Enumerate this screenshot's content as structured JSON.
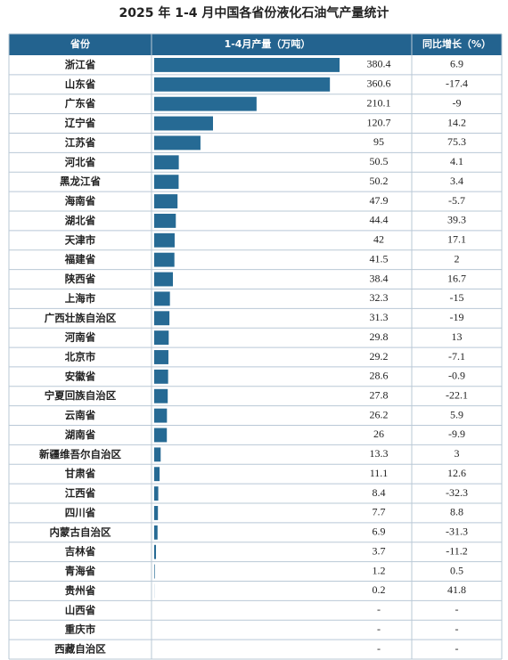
{
  "table": {
    "title": "2025 年 1-4 月中国各省份液化石油气产量统计",
    "columns": [
      "省份",
      "1-4月产量（万吨）",
      "同比增长（%）"
    ],
    "bar_color": "#266a94",
    "rows": [
      [
        "浙江省",
        380.4,
        6.9
      ],
      [
        "山东省",
        360.6,
        -17.4
      ],
      [
        "广东省",
        210.1,
        -9
      ],
      [
        "辽宁省",
        120.7,
        14.2
      ],
      [
        "江苏省",
        95,
        75.3
      ],
      [
        "河北省",
        50.5,
        4.1
      ],
      [
        "黑龙江省",
        50.2,
        3.4
      ],
      [
        "海南省",
        47.9,
        -5.7
      ],
      [
        "湖北省",
        44.4,
        39.3
      ],
      [
        "天津市",
        42,
        17.1
      ],
      [
        "福建省",
        41.5,
        2
      ],
      [
        "陕西省",
        38.4,
        16.7
      ],
      [
        "上海市",
        32.3,
        -15
      ],
      [
        "广西壮族自治区",
        31.3,
        -19
      ],
      [
        "河南省",
        29.8,
        13
      ],
      [
        "北京市",
        29.2,
        -7.1
      ],
      [
        "安徽省",
        28.6,
        -0.9
      ],
      [
        "宁夏回族自治区",
        27.8,
        -22.1
      ],
      [
        "云南省",
        26.2,
        5.9
      ],
      [
        "湖南省",
        26,
        -9.9
      ],
      [
        "新疆维吾尔自治区",
        13.3,
        3
      ],
      [
        "甘肃省",
        11.1,
        12.6
      ],
      [
        "江西省",
        8.4,
        -32.3
      ],
      [
        "四川省",
        7.7,
        8.8
      ],
      [
        "内蒙古自治区",
        6.9,
        -31.3
      ],
      [
        "吉林省",
        3.7,
        -11.2
      ],
      [
        "青海省",
        1.2,
        0.5
      ],
      [
        "贵州省",
        0.2,
        41.8
      ],
      [
        "山西省",
        "-",
        "-"
      ],
      [
        "重庆市",
        "-",
        "-"
      ],
      [
        "西藏自治区",
        "-",
        "-"
      ]
    ]
  }
}
